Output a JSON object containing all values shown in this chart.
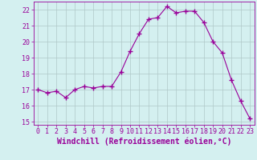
{
  "x": [
    0,
    1,
    2,
    3,
    4,
    5,
    6,
    7,
    8,
    9,
    10,
    11,
    12,
    13,
    14,
    15,
    16,
    17,
    18,
    19,
    20,
    21,
    22,
    23
  ],
  "y": [
    17.0,
    16.8,
    16.9,
    16.5,
    17.0,
    17.2,
    17.1,
    17.2,
    17.2,
    18.1,
    19.4,
    20.5,
    21.4,
    21.5,
    22.2,
    21.8,
    21.9,
    21.9,
    21.2,
    20.0,
    19.3,
    17.6,
    16.3,
    15.2
  ],
  "line_color": "#990099",
  "marker": "+",
  "marker_size": 4,
  "bg_color": "#d4f0f0",
  "grid_color": "#b0c8c8",
  "xlabel": "Windchill (Refroidissement éolien,°C)",
  "ylim": [
    14.8,
    22.5
  ],
  "xlim": [
    -0.5,
    23.5
  ],
  "yticks": [
    15,
    16,
    17,
    18,
    19,
    20,
    21,
    22
  ],
  "xticks": [
    0,
    1,
    2,
    3,
    4,
    5,
    6,
    7,
    8,
    9,
    10,
    11,
    12,
    13,
    14,
    15,
    16,
    17,
    18,
    19,
    20,
    21,
    22,
    23
  ],
  "tick_color": "#990099",
  "label_color": "#990099",
  "spine_color": "#990099",
  "tick_fontsize": 6,
  "xlabel_fontsize": 7
}
